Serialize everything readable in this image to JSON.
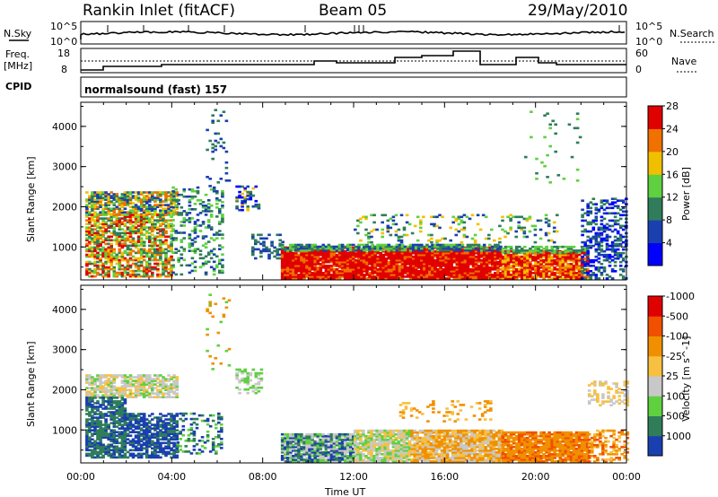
{
  "header": {
    "title": "Rankin Inlet (fitACF)",
    "beam": "Beam 05",
    "date": "29/May/2010"
  },
  "strips": {
    "nsky_label": "N.Sky",
    "nsky_ticks": [
      "10^5",
      "10^0"
    ],
    "nsearch_label": "N.Search",
    "nsearch_ticks": [
      "10^5",
      "10^0"
    ],
    "freq_label_1": "Freq.",
    "freq_label_2": "[MHz]",
    "freq_ticks": [
      "18",
      "8"
    ],
    "nave_label": "Nave",
    "nave_ticks": [
      "60",
      "0"
    ],
    "cpid_label": "CPID",
    "cpid_text": "normalsound (fast) 157"
  },
  "chart_data": [
    {
      "type": "heatmap",
      "panel": "power",
      "ylabel": "Slant Range [km]",
      "ylim": [
        180,
        4600
      ],
      "yticks": [
        1000,
        2000,
        3000,
        4000
      ],
      "xlim": [
        0,
        24
      ],
      "colorbar_label": "Power [dB]",
      "colorbar_ticks": [
        "4",
        "8",
        "12",
        "16",
        "20",
        "24",
        "28"
      ],
      "colors": [
        "#0000ff",
        "#1a3fb0",
        "#2f7d5a",
        "#5fd040",
        "#f0c000",
        "#f07000",
        "#e00000"
      ]
    },
    {
      "type": "heatmap",
      "panel": "velocity",
      "ylabel": "Slant Range [km]",
      "ylim": [
        180,
        4600
      ],
      "yticks": [
        1000,
        2000,
        3000,
        4000
      ],
      "xlim": [
        0,
        24
      ],
      "xlabel": "Time UT",
      "xticks": [
        "00:00",
        "04:00",
        "08:00",
        "12:00",
        "16:00",
        "20:00",
        "00:00"
      ],
      "colorbar_label": "Velocity [m s^-1]",
      "colorbar_ticks": [
        "1000",
        "500",
        "100",
        "25",
        "-25",
        "-100",
        "-500",
        "-1000"
      ],
      "colors": [
        "#1a3fb0",
        "#2f7d5a",
        "#5fd040",
        "#c8c8c8",
        "#f8c040",
        "#f09000",
        "#f05000",
        "#e00000"
      ]
    }
  ]
}
